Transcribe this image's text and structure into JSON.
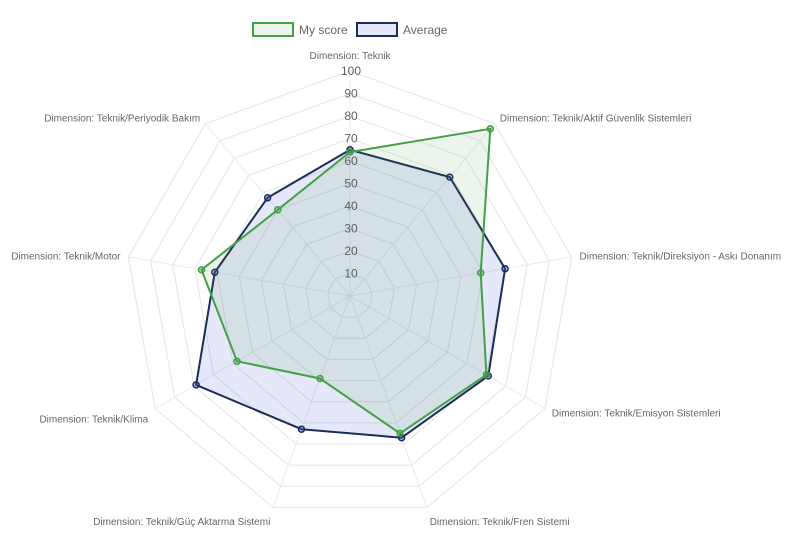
{
  "chart_data": {
    "type": "radar",
    "axes": [
      "Dimension: Teknik",
      "Dimension: Teknik/Aktif Güvenlik Sistemleri",
      "Dimension: Teknik/Direksiyon - Askı Donanım",
      "Dimension: Teknik/Emisyon Sistemleri",
      "Dimension: Teknik/Fren Sistemi",
      "Dimension: Teknik/Güç Aktarma Sistemi",
      "Dimension: Teknik/Klima",
      "Dimension: Teknik/Motor",
      "Dimension: Teknik/Periyodik Bakım"
    ],
    "series": [
      {
        "name": "My score",
        "values": [
          64,
          97,
          59,
          70,
          65,
          39,
          58,
          67,
          50
        ],
        "color": "#43a047",
        "fill": "rgba(67,160,71,0.10)"
      },
      {
        "name": "Average",
        "values": [
          65,
          69,
          70,
          71,
          67,
          63,
          79,
          61,
          57
        ],
        "color": "#1c2d5a",
        "fill": "rgba(55,80,200,0.13)"
      }
    ],
    "ticks": [
      10,
      20,
      30,
      40,
      50,
      60,
      70,
      80,
      90,
      100
    ],
    "rlim": [
      0,
      100
    ],
    "grid": true,
    "legend": "top"
  }
}
